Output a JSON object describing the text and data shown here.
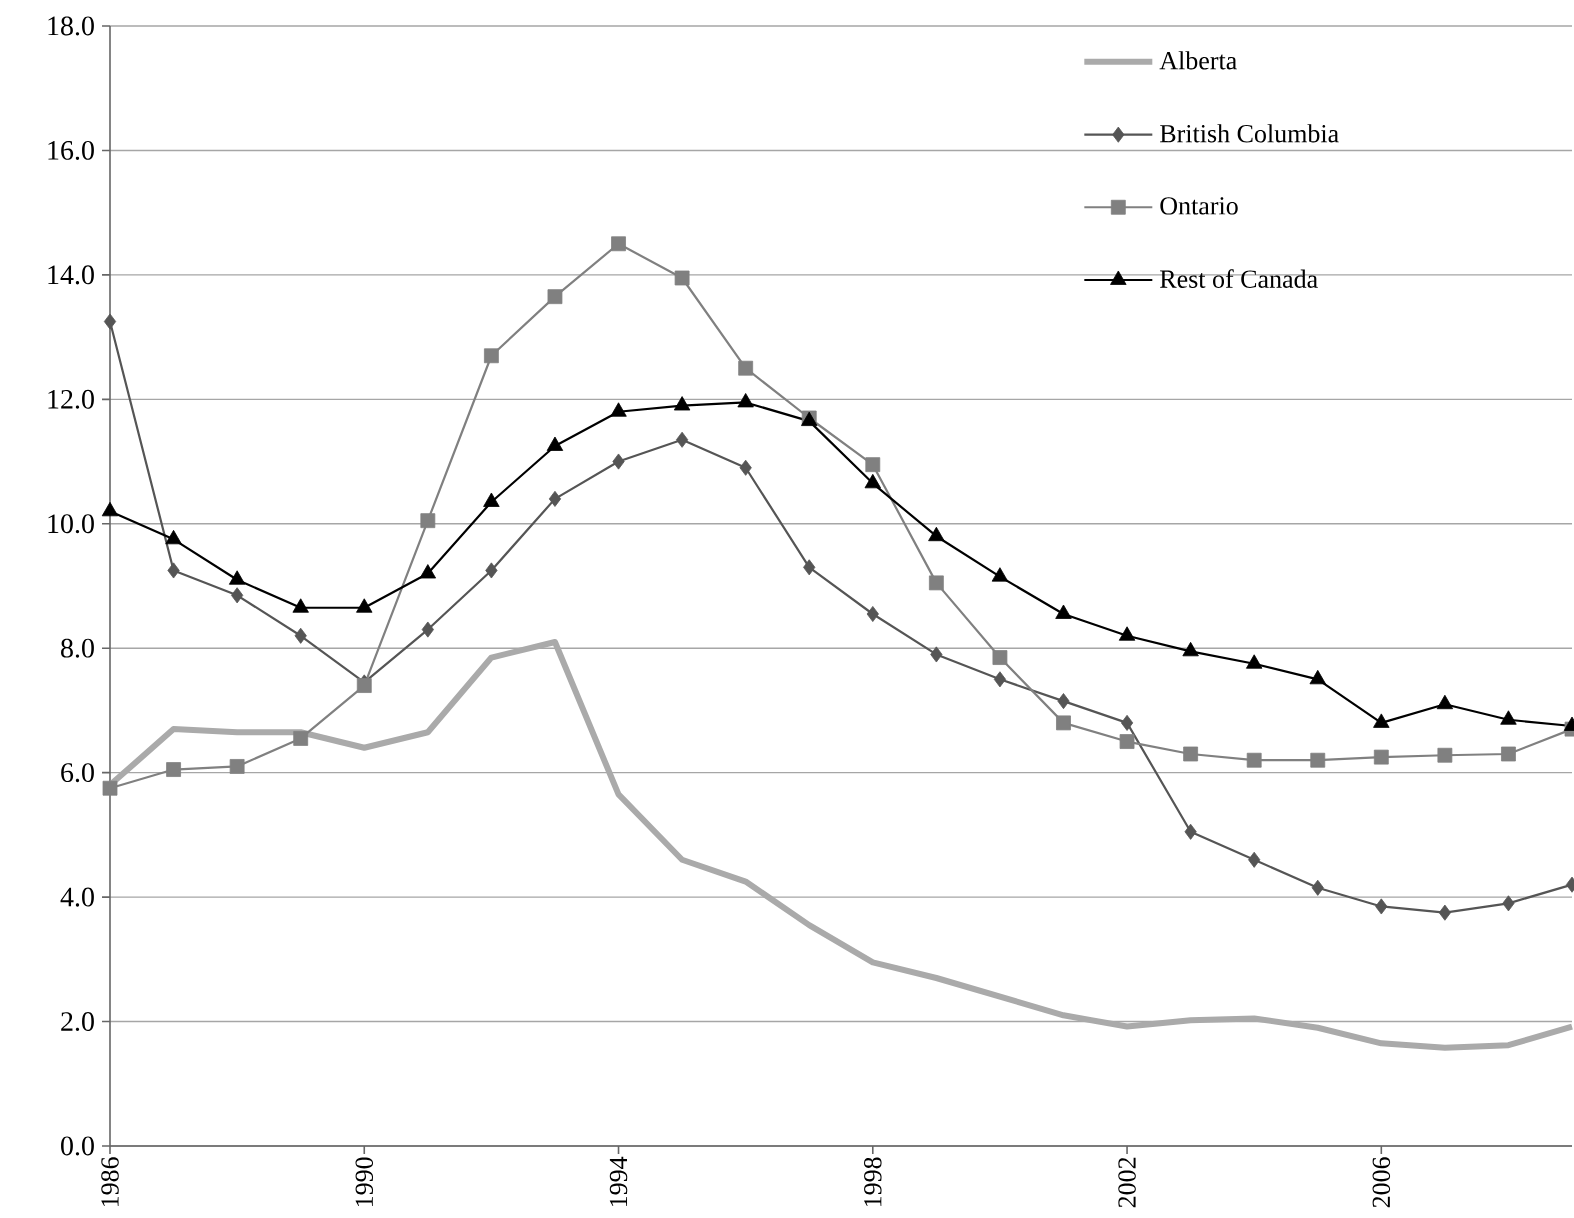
{
  "chart_data": {
    "type": "line",
    "x": [
      1986,
      1987,
      1988,
      1989,
      1990,
      1991,
      1992,
      1993,
      1994,
      1995,
      1996,
      1997,
      1998,
      1999,
      2000,
      2001,
      2002,
      2003,
      2004,
      2005,
      2006,
      2007,
      2008,
      2009
    ],
    "xlim": [
      1986,
      2009
    ],
    "xticks": [
      1986,
      1990,
      1994,
      1998,
      2002,
      2006
    ],
    "ylim": [
      0,
      18
    ],
    "yticks": [
      {
        "value": 0,
        "label": "0.0"
      },
      {
        "value": 2,
        "label": "2.0"
      },
      {
        "value": 4,
        "label": "4.0"
      },
      {
        "value": 6,
        "label": "6.0"
      },
      {
        "value": 8,
        "label": "8.0"
      },
      {
        "value": 10,
        "label": "10.0"
      },
      {
        "value": 12,
        "label": "12.0"
      },
      {
        "value": 14,
        "label": "14.0"
      },
      {
        "value": 16,
        "label": "16.0"
      },
      {
        "value": 18,
        "label": "18.0"
      }
    ],
    "grid": "y",
    "legend": "top right",
    "series": [
      {
        "name": "Alberta",
        "color": "#aaaaaa",
        "marker": "none",
        "values": [
          5.8,
          6.7,
          6.65,
          6.65,
          6.4,
          6.65,
          7.85,
          8.1,
          5.65,
          4.6,
          4.25,
          3.55,
          2.95,
          2.7,
          2.4,
          2.1,
          1.92,
          2.02,
          2.05,
          1.9,
          1.65,
          1.58,
          1.62,
          1.92
        ]
      },
      {
        "name": "British Columbia",
        "color": "#555555",
        "marker": "diamond",
        "values": [
          13.25,
          9.25,
          8.85,
          8.2,
          7.45,
          8.3,
          9.25,
          10.4,
          11.0,
          11.35,
          10.9,
          9.3,
          8.55,
          7.9,
          7.5,
          7.15,
          6.8,
          5.05,
          4.6,
          4.15,
          3.85,
          3.75,
          3.9,
          4.2
        ]
      },
      {
        "name": "Ontario",
        "color": "#808080",
        "marker": "square",
        "values": [
          5.75,
          6.05,
          6.1,
          6.55,
          7.4,
          10.05,
          12.7,
          13.65,
          14.5,
          13.95,
          12.5,
          11.7,
          10.95,
          9.05,
          7.85,
          6.8,
          6.5,
          6.3,
          6.2,
          6.2,
          6.25,
          6.28,
          6.3,
          6.7
        ]
      },
      {
        "name": "Rest of Canada",
        "color": "#000000",
        "marker": "triangle",
        "values": [
          10.2,
          9.75,
          9.1,
          8.65,
          8.65,
          9.2,
          10.35,
          11.25,
          11.8,
          11.9,
          11.95,
          11.65,
          10.65,
          9.8,
          9.15,
          8.55,
          8.2,
          7.95,
          7.75,
          7.5,
          6.8,
          7.1,
          6.85,
          6.75
        ]
      }
    ]
  }
}
